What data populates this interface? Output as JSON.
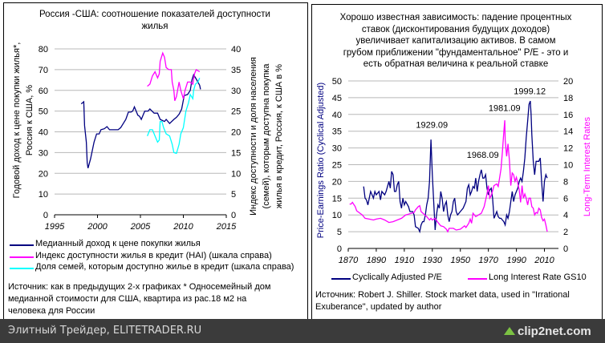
{
  "left_chart_box": {
    "legend": [
      {
        "label": "Медианный доход к цене покупки жилья",
        "color": "#000080"
      },
      {
        "label": "Индекс доступности жилья в кредит (HAI) (шкала справа)",
        "color": "#ff00ff"
      },
      {
        "label": "Доля семей, которым доступно жилье в кредит (шкала справа)",
        "color": "#00ffff"
      }
    ],
    "source_lines": [
      "Источник: как в предыдущих 2-х графиках * Односемейный дом",
      "медианной стоимости для США, квартира из рас.18 м2 на",
      "человека для России"
    ]
  },
  "right_chart_box": {
    "legend": [
      {
        "label": "Cyclically Adjusted P/E",
        "color": "#000080"
      },
      {
        "label": "Long Interest Rate GS10",
        "color": "#ff00ff"
      }
    ],
    "source_lines": [
      "Источник: Robert J. Shiller.  Stock market data, used in \"Irrational",
      "Exuberance\", updated by author"
    ]
  },
  "footer": {
    "site": "Элитный Трейдер, ELITETRADER.RU",
    "logo": "clip2net.com"
  },
  "chart_data": [
    {
      "type": "line",
      "title_lines": [
        "Россия -США: соотношение показателей доступности",
        "жилья"
      ],
      "ylabel_lines": [
        "Годовой доход к цене покупки жилья*,",
        "Россия к США, %"
      ],
      "y2label_lines": [
        "Индекс доступности и доля населения",
        "(семей), которым доступна покупка",
        "жилья в кредит, Россия, к США в %"
      ],
      "xlim": [
        1995,
        2015
      ],
      "xticks": [
        "1995",
        "2000",
        "2005",
        "2010",
        "2015"
      ],
      "ylim": [
        0,
        80
      ],
      "yticks": [
        "0",
        "10",
        "20",
        "30",
        "40",
        "50",
        "60",
        "70",
        "80"
      ],
      "y2lim": [
        0,
        40
      ],
      "y2ticks": [
        "0",
        "5",
        "10",
        "15",
        "20",
        "25",
        "30",
        "35",
        "40"
      ],
      "grid": true,
      "series": [
        {
          "name": "Медианный доход к цене покупки жилья",
          "axis": "left",
          "color": "#000080",
          "x": [
            1998.1,
            1998.4,
            1998.5,
            1998.7,
            1998.8,
            1998.9,
            1999.2,
            1999.6,
            1999.9,
            2000.2,
            2000.4,
            2000.8,
            2001.1,
            2001.4,
            2001.7,
            2002.4,
            2002.7,
            2003.3,
            2003.6,
            2003.9,
            2004.1,
            2004.3,
            2004.7,
            2004.9,
            2005.1,
            2005.5,
            2005.9,
            2006.1,
            2006.6,
            2007.0,
            2007.3,
            2007.8,
            2008.0,
            2008.4,
            2008.9,
            2009.2,
            2009.5,
            2009.8,
            2010.1,
            2010.5,
            2010.8,
            2011.0,
            2011.2,
            2011.5,
            2011.9,
            2012.0
          ],
          "y": [
            53.5,
            54.5,
            43,
            35,
            25,
            22.5,
            27,
            35,
            39,
            39,
            41,
            41.5,
            42.5,
            41,
            41,
            41,
            42,
            46,
            49.5,
            49.5,
            50,
            52,
            48,
            47.5,
            46,
            50,
            50,
            51,
            49,
            49,
            46,
            45,
            46,
            44,
            46,
            47,
            48.5,
            51,
            57.5,
            58,
            60,
            65,
            67.5,
            65.5,
            62.5,
            60.5
          ]
        },
        {
          "name": "Индекс доступности жилья в кредит (HAI)",
          "axis": "right",
          "color": "#ff00ff",
          "x": [
            2005.8,
            2006.1,
            2006.4,
            2006.7,
            2007.0,
            2007.2,
            2007.3,
            2007.6,
            2007.8,
            2008.0,
            2008.3,
            2008.6,
            2008.7,
            2008.9,
            2009.0,
            2009.2,
            2009.5,
            2009.7,
            2010.0,
            2010.2,
            2010.5,
            2010.8,
            2011.1,
            2011.3,
            2011.5,
            2011.9
          ],
          "y": [
            31,
            31.5,
            33.5,
            34.5,
            33,
            34,
            37,
            39,
            38,
            35.5,
            35,
            35,
            32,
            30,
            27.5,
            28.5,
            32,
            30,
            28,
            30,
            32,
            32,
            31.5,
            34,
            35,
            34.5
          ]
        },
        {
          "name": "Доля семей, которым доступно жилье в кредит",
          "axis": "right",
          "color": "#00ffff",
          "x": [
            2005.8,
            2006.1,
            2006.4,
            2006.7,
            2007.0,
            2007.2,
            2007.3,
            2007.5,
            2007.7,
            2008.0,
            2008.4,
            2008.7,
            2008.9,
            2009.2,
            2009.5,
            2009.7,
            2010.0,
            2010.3,
            2010.6,
            2010.8,
            2011.1,
            2011.2,
            2011.4,
            2011.7,
            2011.9
          ],
          "y": [
            19,
            20.5,
            20.5,
            19,
            17.5,
            18,
            22.5,
            22.5,
            21,
            19.5,
            19,
            17,
            15,
            14.8,
            17,
            19.5,
            21,
            25,
            27,
            29,
            28,
            30,
            31.5,
            32,
            33
          ]
        }
      ]
    },
    {
      "type": "line",
      "title_lines": [
        "Хорошо известная зависимость: падение процентных",
        "ставок (дисконтирования будущих доходов)",
        "увеличивает капитализацию активов. В самом",
        "грубом приближении \"фундаментальное\" P/E - это и",
        "есть обратная величина к реальной ставке"
      ],
      "ylabel": "Price-Earnings Ratio (Cyclical Adjusted)",
      "y2label": "Long-Term Interest Rates",
      "xlim": [
        1870,
        2020
      ],
      "xticks": [
        "1870",
        "1890",
        "1910",
        "1930",
        "1950",
        "1970",
        "1990",
        "2010"
      ],
      "ylim": [
        0,
        50
      ],
      "yticks": [
        "0",
        "5",
        "10",
        "15",
        "20",
        "25",
        "30",
        "35",
        "40",
        "45",
        "50"
      ],
      "y2lim": [
        0,
        20
      ],
      "y2ticks": [
        "0",
        "2",
        "4",
        "6",
        "8",
        "10",
        "12",
        "14",
        "16",
        "18",
        "20"
      ],
      "grid": true,
      "annotations": [
        {
          "text": "1929.09",
          "x": 1929.7,
          "y": 36
        },
        {
          "text": "1968.09",
          "x": 1966,
          "y": 27
        },
        {
          "text": "1981.09",
          "x": 1981.5,
          "y": 41
        },
        {
          "text": "1999.12",
          "x": 1999.5,
          "y": 46
        }
      ],
      "series": [
        {
          "name": "Cyclically Adjusted P/E",
          "axis": "left",
          "color": "#000080",
          "x": [
            1881,
            1882,
            1883,
            1884,
            1885,
            1886,
            1887,
            1888,
            1889,
            1890,
            1892,
            1893,
            1894,
            1896,
            1897,
            1899,
            1900,
            1901,
            1902,
            1903,
            1904,
            1905,
            1906,
            1907,
            1908,
            1909,
            1910,
            1911,
            1913,
            1914,
            1916,
            1917,
            1918,
            1920,
            1921,
            1922,
            1923,
            1924,
            1925,
            1926,
            1927,
            1928,
            1929,
            1930,
            1931,
            1932,
            1933,
            1934,
            1935,
            1936,
            1937,
            1938,
            1939,
            1940,
            1941,
            1942,
            1943,
            1944,
            1945,
            1946,
            1947,
            1948,
            1949,
            1950,
            1952,
            1954,
            1955,
            1956,
            1957,
            1958,
            1959,
            1960,
            1961,
            1962,
            1963,
            1964,
            1965,
            1966,
            1967,
            1968,
            1969,
            1970,
            1971,
            1972,
            1973,
            1974,
            1975,
            1976,
            1977,
            1978,
            1979,
            1980,
            1981,
            1982,
            1983,
            1984,
            1985,
            1986,
            1987,
            1988,
            1989,
            1990,
            1991,
            1992,
            1993,
            1994,
            1995,
            1996,
            1997,
            1998,
            1999,
            1999.9,
            2000.5,
            2001,
            2002,
            2003,
            2004,
            2005,
            2006,
            2007,
            2008,
            2009,
            2010,
            2011,
            2012
          ],
          "y": [
            18.5,
            15,
            14.5,
            13,
            15,
            17,
            16,
            15,
            17,
            16,
            17,
            14.5,
            17,
            16,
            17,
            20,
            18,
            23,
            22,
            17,
            17,
            19,
            20,
            14,
            12,
            15,
            13,
            14,
            12.5,
            11,
            11,
            10,
            6.5,
            6,
            5,
            7,
            8,
            8,
            10,
            13,
            15,
            20,
            32.5,
            22,
            14,
            5.5,
            10,
            13,
            12,
            17,
            15,
            11,
            13,
            14,
            10,
            8,
            10,
            11,
            14,
            15,
            11,
            10,
            10.5,
            11,
            12,
            14,
            18,
            19,
            16,
            17,
            18.5,
            18,
            21,
            17,
            20,
            22,
            23.5,
            21,
            21,
            22,
            18,
            16,
            17.5,
            18,
            15,
            9,
            10,
            11,
            9.5,
            9,
            9,
            8.5,
            8,
            7,
            10,
            9,
            11,
            14,
            17,
            14,
            16,
            17,
            18,
            20,
            21,
            20,
            23,
            27,
            33,
            38,
            43,
            44,
            40,
            34,
            26,
            22,
            26,
            26,
            26,
            27,
            20,
            14,
            20,
            22,
            21
          ]
        },
        {
          "name": "Long Interest Rate GS10",
          "axis": "right",
          "color": "#ff00ff",
          "x": [
            1871,
            1872,
            1873,
            1875,
            1876,
            1880,
            1882,
            1885,
            1888,
            1890,
            1893,
            1896,
            1899,
            1902,
            1905,
            1908,
            1911,
            1913,
            1915,
            1917,
            1918,
            1920,
            1921,
            1922,
            1924,
            1926,
            1928,
            1929,
            1930,
            1932,
            1934,
            1936,
            1938,
            1940,
            1941,
            1942,
            1945,
            1947,
            1950,
            1953,
            1954,
            1956,
            1957,
            1958,
            1959,
            1961,
            1963,
            1965,
            1967,
            1969,
            1970,
            1971,
            1972,
            1974,
            1976,
            1977,
            1978,
            1979,
            1980,
            1981,
            1981.7,
            1982,
            1983,
            1984,
            1985,
            1986,
            1987,
            1988,
            1989,
            1990,
            1992,
            1993,
            1994,
            1995,
            1996,
            1997,
            1998,
            1999,
            2000,
            2001,
            2002,
            2003,
            2004,
            2005,
            2006,
            2007,
            2008,
            2009,
            2010,
            2011,
            2012
          ],
          "y": [
            5.3,
            5.3,
            5.5,
            5,
            4.5,
            4,
            3.6,
            3.5,
            3.4,
            3.5,
            3.6,
            3.4,
            3.1,
            3.2,
            3.4,
            3.6,
            4,
            4.1,
            4.2,
            4.3,
            4.6,
            5,
            5.1,
            4.4,
            4.1,
            3.8,
            3.4,
            3.6,
            3.4,
            3.6,
            3.1,
            2.7,
            2.6,
            2.3,
            2,
            2.4,
            2.4,
            2.2,
            2.3,
            2.7,
            2.5,
            3,
            3.5,
            3,
            4.2,
            3.8,
            4,
            4.2,
            5,
            6.5,
            7.5,
            6,
            6.3,
            7.5,
            7.7,
            7.4,
            8.4,
            9.5,
            11.5,
            13.9,
            15.3,
            13,
            11,
            12.5,
            10.5,
            7.5,
            9,
            8.8,
            8,
            8.5,
            7,
            5.5,
            7.5,
            6,
            6.5,
            6,
            5.2,
            6,
            6,
            5,
            4.8,
            4,
            4.3,
            4.2,
            4.8,
            4.6,
            3.7,
            3.3,
            3.5,
            2.8,
            2
          ]
        }
      ],
      "legend": "bottom"
    }
  ]
}
